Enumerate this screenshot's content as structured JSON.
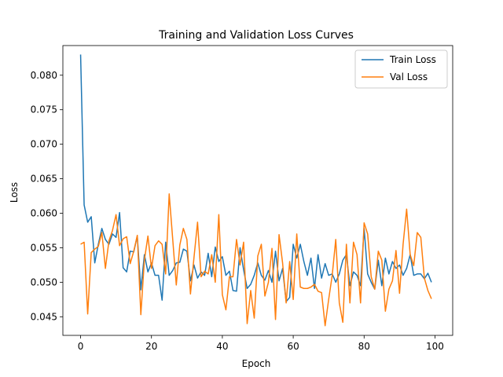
{
  "chart_data": {
    "type": "line",
    "title": "Training and Validation Loss Curves",
    "xlabel": "Epoch",
    "ylabel": "Loss",
    "xlim": [
      -5,
      105
    ],
    "ylim": [
      0.0423,
      0.0843
    ],
    "xticks": [
      0,
      20,
      40,
      60,
      80,
      100
    ],
    "yticks": [
      0.045,
      0.05,
      0.055,
      0.06,
      0.065,
      0.07,
      0.075,
      0.08
    ],
    "ytick_labels": [
      "0.045",
      "0.050",
      "0.055",
      "0.060",
      "0.065",
      "0.070",
      "0.075",
      "0.080"
    ],
    "legend_position": "top-right",
    "grid": false,
    "x": [
      0,
      1,
      2,
      3,
      4,
      5,
      6,
      7,
      8,
      9,
      10,
      11,
      12,
      13,
      14,
      15,
      16,
      17,
      18,
      19,
      20,
      21,
      22,
      23,
      24,
      25,
      26,
      27,
      28,
      29,
      30,
      31,
      32,
      33,
      34,
      35,
      36,
      37,
      38,
      39,
      40,
      41,
      42,
      43,
      44,
      45,
      46,
      47,
      48,
      49,
      50,
      51,
      52,
      53,
      54,
      55,
      56,
      57,
      58,
      59,
      60,
      61,
      62,
      63,
      64,
      65,
      66,
      67,
      68,
      69,
      70,
      71,
      72,
      73,
      74,
      75,
      76,
      77,
      78,
      79,
      80,
      81,
      82,
      83,
      84,
      85,
      86,
      87,
      88,
      89,
      90,
      91,
      92,
      93,
      94,
      95,
      96,
      97,
      98,
      99
    ],
    "series": [
      {
        "name": "Train Loss",
        "color": "#1f77b4",
        "values": [
          0.083,
          0.0612,
          0.0587,
          0.0595,
          0.0528,
          0.0555,
          0.0578,
          0.0562,
          0.0555,
          0.057,
          0.0565,
          0.0601,
          0.0521,
          0.0515,
          0.0545,
          0.0544,
          0.0567,
          0.0489,
          0.054,
          0.0515,
          0.0528,
          0.051,
          0.051,
          0.0474,
          0.0558,
          0.051,
          0.0517,
          0.0528,
          0.0529,
          0.0548,
          0.0545,
          0.0502,
          0.0525,
          0.0506,
          0.0515,
          0.051,
          0.0542,
          0.0508,
          0.0551,
          0.053,
          0.0537,
          0.051,
          0.0516,
          0.0488,
          0.0487,
          0.055,
          0.0518,
          0.0491,
          0.0497,
          0.051,
          0.0528,
          0.051,
          0.0503,
          0.0517,
          0.05,
          0.0545,
          0.0502,
          0.052,
          0.0472,
          0.0478,
          0.0555,
          0.0535,
          0.0555,
          0.053,
          0.051,
          0.0535,
          0.0491,
          0.054,
          0.0506,
          0.0527,
          0.051,
          0.0512,
          0.05,
          0.0512,
          0.0532,
          0.054,
          0.0495,
          0.0515,
          0.051,
          0.0495,
          0.0578,
          0.0512,
          0.05,
          0.049,
          0.0532,
          0.0495,
          0.0535,
          0.0512,
          0.053,
          0.052,
          0.0525,
          0.051,
          0.052,
          0.054,
          0.051,
          0.0512,
          0.0512,
          0.0505,
          0.0513,
          0.05
        ]
      },
      {
        "name": "Val Loss",
        "color": "#ff7f0e",
        "values": [
          0.0555,
          0.0558,
          0.0454,
          0.0543,
          0.0548,
          0.0552,
          0.0572,
          0.052,
          0.056,
          0.0575,
          0.0598,
          0.0553,
          0.0563,
          0.0566,
          0.0527,
          0.0545,
          0.0568,
          0.0453,
          0.0532,
          0.0567,
          0.052,
          0.0553,
          0.056,
          0.0555,
          0.0512,
          0.0628,
          0.0562,
          0.0496,
          0.0554,
          0.0578,
          0.0562,
          0.0483,
          0.0536,
          0.0587,
          0.0508,
          0.0516,
          0.0512,
          0.054,
          0.05,
          0.0598,
          0.0482,
          0.046,
          0.0508,
          0.0508,
          0.0562,
          0.0525,
          0.0558,
          0.044,
          0.0488,
          0.0448,
          0.0538,
          0.0555,
          0.048,
          0.05,
          0.0549,
          0.0446,
          0.0569,
          0.0528,
          0.047,
          0.053,
          0.0475,
          0.057,
          0.0493,
          0.0491,
          0.0491,
          0.0493,
          0.0497,
          0.0487,
          0.0485,
          0.0437,
          0.0475,
          0.051,
          0.0562,
          0.047,
          0.0442,
          0.0555,
          0.047,
          0.0558,
          0.054,
          0.047,
          0.0586,
          0.057,
          0.0508,
          0.049,
          0.0545,
          0.0532,
          0.0458,
          0.049,
          0.0502,
          0.0546,
          0.0484,
          0.0555,
          0.0606,
          0.054,
          0.0524,
          0.0572,
          0.0565,
          0.0506,
          0.0488,
          0.0476
        ]
      }
    ]
  }
}
